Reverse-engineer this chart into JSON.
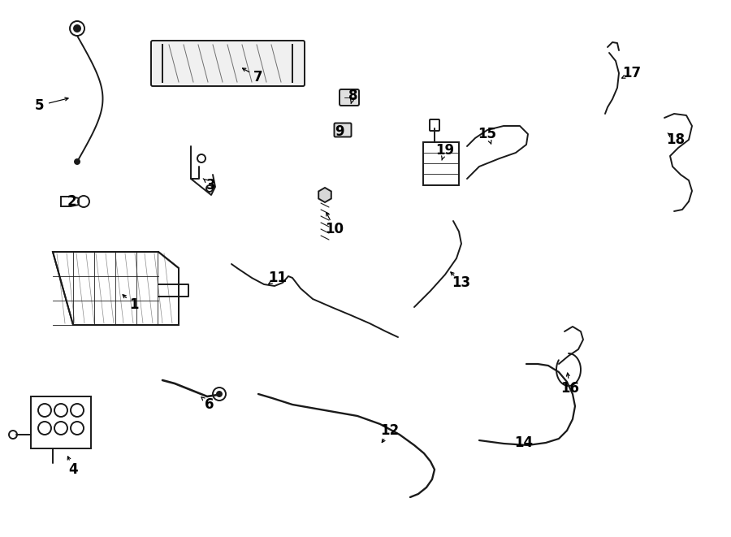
{
  "background_color": "#ffffff",
  "line_color": "#1a1a1a",
  "label_color": "#000000",
  "fig_width": 9.0,
  "fig_height": 6.61,
  "dpi": 100,
  "lw": 1.4
}
